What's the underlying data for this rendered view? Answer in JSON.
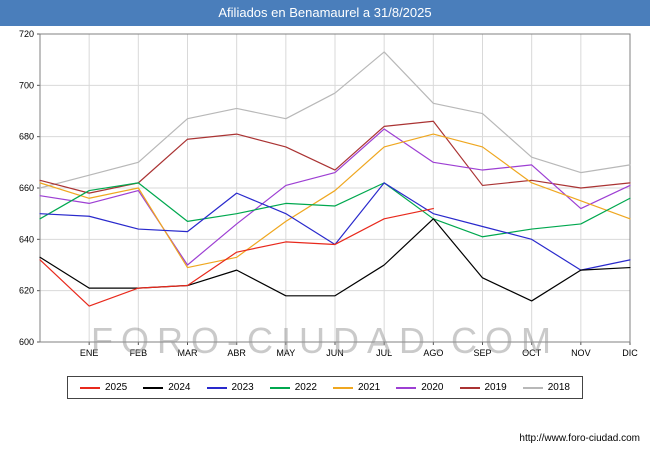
{
  "title": "Afiliados en Benamaurel a 31/8/2025",
  "watermark": "FORO-CIUDAD.COM",
  "footer": {
    "url": "http://www.foro-ciudad.com"
  },
  "colors": {
    "titlebar_bg": "#4a7ebb",
    "titlebar_text": "#ffffff",
    "grid": "#d9d9d9",
    "plot_border": "#808080",
    "axis_text": "#000000",
    "legend_border": "#444444"
  },
  "chart_data": {
    "type": "line",
    "title": "Afiliados en Benamaurel a 31/8/2025",
    "xlabel": "",
    "ylabel": "",
    "ylim": [
      600,
      720
    ],
    "yticks": [
      600,
      620,
      640,
      660,
      680,
      700,
      720
    ],
    "x_labels": [
      "ENE",
      "FEB",
      "MAR",
      "ABR",
      "MAY",
      "JUN",
      "JUL",
      "AGO",
      "SEP",
      "OCT",
      "NOV",
      "DIC"
    ],
    "grid": true,
    "legend_position": "bottom",
    "note": "each series has a start value plotted on the left axis before ENE; 2025 runs through AGO only",
    "series": [
      {
        "name": "2025",
        "color": "#e8291c",
        "start": 632,
        "values": [
          614,
          621,
          622,
          635,
          639,
          638,
          648,
          652
        ]
      },
      {
        "name": "2024",
        "color": "#000000",
        "start": 633,
        "values": [
          621,
          621,
          622,
          628,
          618,
          618,
          630,
          648,
          625,
          616,
          628,
          629
        ]
      },
      {
        "name": "2023",
        "color": "#2929cc",
        "start": 650,
        "values": [
          649,
          644,
          643,
          658,
          650,
          638,
          662,
          650,
          645,
          640,
          628,
          632
        ]
      },
      {
        "name": "2022",
        "color": "#00a84f",
        "start": 648,
        "values": [
          659,
          662,
          647,
          650,
          654,
          653,
          662,
          648,
          641,
          644,
          646,
          656
        ]
      },
      {
        "name": "2021",
        "color": "#efa720",
        "start": 662,
        "values": [
          656,
          660,
          629,
          633,
          647,
          659,
          676,
          681,
          676,
          662,
          655,
          648
        ]
      },
      {
        "name": "2020",
        "color": "#9d3fd3",
        "start": 657,
        "values": [
          654,
          659,
          630,
          646,
          661,
          666,
          683,
          670,
          667,
          669,
          652,
          661
        ]
      },
      {
        "name": "2019",
        "color": "#aa3333",
        "start": 663,
        "values": [
          658,
          662,
          679,
          681,
          676,
          667,
          684,
          686,
          661,
          663,
          660,
          662
        ]
      },
      {
        "name": "2018",
        "color": "#b8b8b8",
        "start": 660,
        "values": [
          665,
          670,
          687,
          691,
          687,
          697,
          713,
          693,
          689,
          672,
          666,
          669
        ]
      }
    ]
  }
}
